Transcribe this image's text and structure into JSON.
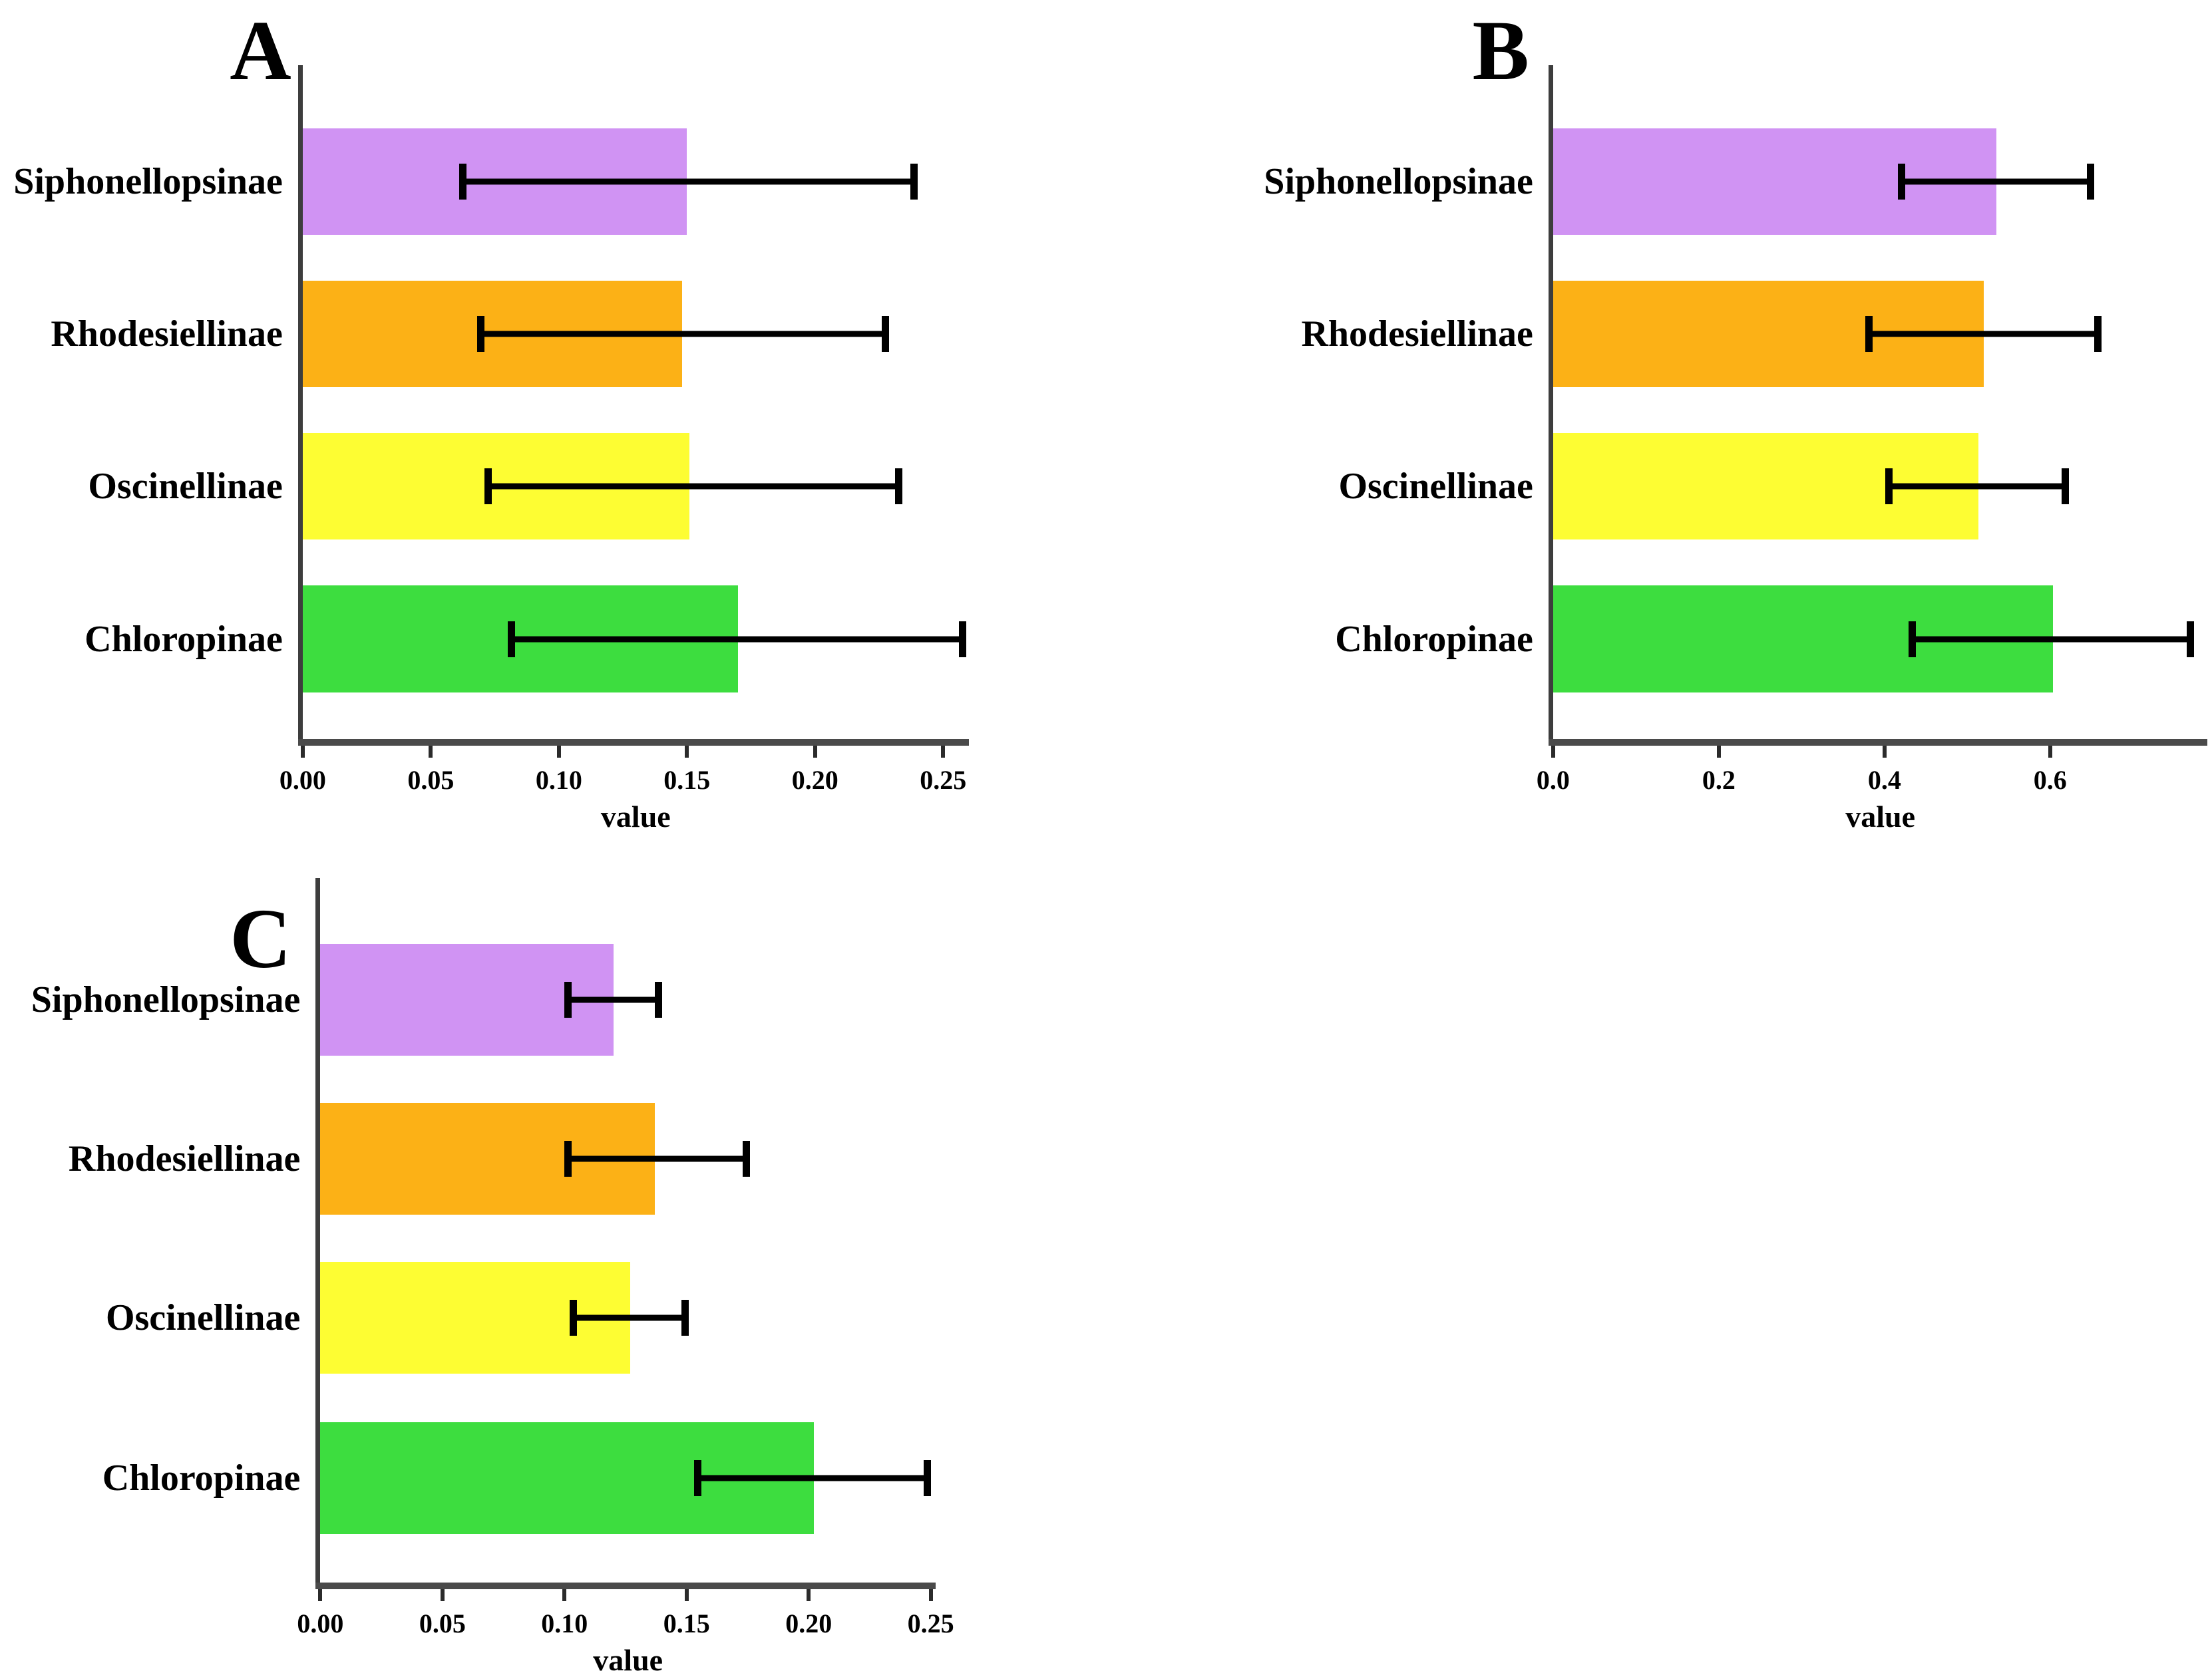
{
  "figure_description": "Three horizontal bar charts with error bars comparing four chloropid fly subfamilies",
  "bar_colors": [
    "#d093f3",
    "#fcb116",
    "#fdfd33",
    "#3ddd3f"
  ],
  "bar_color_names": [
    "violet",
    "orange",
    "yellow",
    "green"
  ],
  "axis_color": "#4a4a4a",
  "error_bar_color": "#000000",
  "chart_data": [
    {
      "type": "bar",
      "orientation": "horizontal",
      "panel_label": "A",
      "xlabel": "value",
      "categories": [
        "Siphonellopsinae",
        "Rhodesiellinae",
        "Oscinellinae",
        "Chloropinae"
      ],
      "values": [
        0.15,
        0.148,
        0.151,
        0.17
      ],
      "error_low": [
        0.061,
        0.068,
        0.071,
        0.08
      ],
      "error_high": [
        0.24,
        0.229,
        0.234,
        0.259
      ],
      "xlim": [
        0,
        0.26
      ],
      "ticks": [
        0,
        0.05,
        0.1,
        0.15,
        0.2,
        0.25
      ],
      "tick_labels": [
        "0.00",
        "0.05",
        "0.10",
        "0.15",
        "0.20",
        "0.25"
      ],
      "grid": "off",
      "legend": "none"
    },
    {
      "type": "bar",
      "orientation": "horizontal",
      "panel_label": "B",
      "xlabel": "value",
      "categories": [
        "Siphonellopsinae",
        "Rhodesiellinae",
        "Oscinellinae",
        "Chloropinae"
      ],
      "values": [
        0.535,
        0.52,
        0.513,
        0.603
      ],
      "error_low": [
        0.416,
        0.377,
        0.401,
        0.429
      ],
      "error_high": [
        0.653,
        0.662,
        0.623,
        0.774
      ],
      "xlim": [
        0,
        0.79
      ],
      "ticks": [
        0,
        0.2,
        0.4,
        0.6
      ],
      "tick_labels": [
        "0.0",
        "0.2",
        "0.4",
        "0.6"
      ],
      "grid": "off",
      "legend": "none"
    },
    {
      "type": "bar",
      "orientation": "horizontal",
      "panel_label": "C",
      "xlabel": "value",
      "categories": [
        "Siphonellopsinae",
        "Rhodesiellinae",
        "Oscinellinae",
        "Chloropinae"
      ],
      "values": [
        0.12,
        0.137,
        0.127,
        0.202
      ],
      "error_low": [
        0.1,
        0.1,
        0.102,
        0.153
      ],
      "error_high": [
        0.14,
        0.176,
        0.151,
        0.25
      ],
      "xlim": [
        0,
        0.252
      ],
      "ticks": [
        0,
        0.05,
        0.1,
        0.15,
        0.2,
        0.25
      ],
      "tick_labels": [
        "0.00",
        "0.05",
        "0.10",
        "0.15",
        "0.20",
        "0.25"
      ],
      "grid": "off",
      "legend": "none"
    }
  ]
}
